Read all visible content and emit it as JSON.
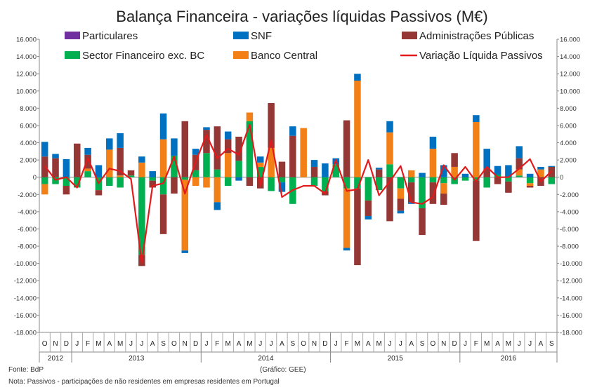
{
  "chart_data": {
    "type": "bar",
    "stacked": true,
    "title": "Balança Financeira - variações líquidas Passivos (M€)",
    "ylim": [
      -18000,
      16000
    ],
    "ytick_step": 2000,
    "ytick_labels": [
      "16.000",
      "14.000",
      "12.000",
      "10.000",
      "8.000",
      "6.000",
      "4.000",
      "2.000",
      "0",
      "-2.000",
      "-4.000",
      "-6.000",
      "-8.000",
      "-10.000",
      "-12.000",
      "-14.000",
      "-16.000",
      "-18.000"
    ],
    "months": [
      "O",
      "N",
      "D",
      "J",
      "F",
      "M",
      "A",
      "M",
      "J",
      "J",
      "A",
      "S",
      "O",
      "N",
      "D",
      "J",
      "F",
      "M",
      "A",
      "M",
      "J",
      "J",
      "A",
      "S",
      "O",
      "N",
      "D",
      "J",
      "F",
      "M",
      "A",
      "M",
      "J",
      "J",
      "A",
      "S",
      "O",
      "N",
      "D",
      "J",
      "F",
      "M",
      "A",
      "M",
      "J",
      "J",
      "A",
      "S"
    ],
    "years": [
      {
        "label": "2012",
        "months": 3
      },
      {
        "label": "2013",
        "months": 12
      },
      {
        "label": "2014",
        "months": 12
      },
      {
        "label": "2015",
        "months": 12
      },
      {
        "label": "2016",
        "months": 9
      }
    ],
    "series": [
      {
        "name": "Particulares",
        "color": "#7030a0",
        "values": [
          0,
          0,
          0,
          0,
          0,
          0,
          0,
          0,
          0,
          0,
          0,
          0,
          0,
          0,
          0,
          0,
          0,
          0,
          0,
          0,
          0,
          0,
          0,
          0,
          0,
          0,
          0,
          0,
          0,
          0,
          0,
          0,
          0,
          0,
          0,
          0,
          0,
          0,
          0,
          0,
          0,
          0,
          0,
          0,
          0,
          0,
          0,
          0
        ]
      },
      {
        "name": "Sector Financeiro exc. BC",
        "color": "#00b050",
        "values": [
          -800,
          -800,
          -1000,
          -1200,
          700,
          -1500,
          -1000,
          -1200,
          200,
          -9000,
          -400,
          -2000,
          2500,
          -300,
          800,
          2800,
          900,
          -1000,
          1900,
          6500,
          1200,
          -1600,
          -600,
          -3100,
          0,
          -1000,
          -1600,
          1500,
          -1300,
          -1300,
          -2700,
          -1500,
          1500,
          -1300,
          -600,
          -3600,
          -600,
          -700,
          -800,
          -400,
          -400,
          -1200,
          300,
          -500,
          200,
          -700,
          0,
          -800
        ]
      },
      {
        "name": "Banco Central",
        "color": "#f28017",
        "values": [
          -1200,
          0,
          0,
          0,
          300,
          0,
          3200,
          200,
          0,
          1700,
          0,
          4400,
          0,
          -8200,
          -1000,
          -1200,
          -2900,
          2800,
          0,
          1000,
          500,
          3400,
          0,
          0,
          5700,
          0,
          0,
          0,
          -6900,
          11200,
          0,
          0,
          3700,
          -1200,
          800,
          0,
          3300,
          -1200,
          1200,
          0,
          6400,
          0,
          0,
          0,
          700,
          -300,
          900,
          0
        ]
      },
      {
        "name": "Administrações Públicas",
        "color": "#953735",
        "values": [
          2400,
          2200,
          -1000,
          3900,
          1600,
          -600,
          0,
          3200,
          600,
          -1300,
          -800,
          -4600,
          -1900,
          6500,
          1800,
          2700,
          5000,
          1600,
          2800,
          -1000,
          -1300,
          5200,
          1800,
          4800,
          0,
          1200,
          -500,
          0,
          6600,
          -8900,
          -1800,
          900,
          -5100,
          -1400,
          -2300,
          -3100,
          -2500,
          -1300,
          1600,
          0,
          -7000,
          1000,
          -800,
          -1300,
          1300,
          -200,
          -1000,
          1200
        ]
      },
      {
        "name": "SNF",
        "color": "#0070c0",
        "values": [
          1700,
          500,
          2100,
          0,
          800,
          1400,
          1300,
          1700,
          0,
          700,
          700,
          3000,
          2000,
          -300,
          700,
          300,
          -900,
          900,
          -400,
          0,
          700,
          0,
          -1100,
          1100,
          0,
          800,
          1600,
          700,
          -300,
          800,
          -400,
          200,
          1300,
          -300,
          -200,
          500,
          1400,
          1400,
          0,
          400,
          800,
          2300,
          1000,
          1400,
          1400,
          400,
          300,
          100
        ]
      }
    ],
    "net_series": {
      "name": "Variação Líquida Passivos",
      "color": "#e31a1c",
      "values": [
        1300,
        -300,
        0,
        -1200,
        2200,
        -700,
        1000,
        700,
        -200,
        -9900,
        -1000,
        -700,
        2400,
        -1900,
        1800,
        4900,
        2200,
        3300,
        2600,
        6100,
        -1000,
        4300,
        -2300,
        -1500,
        -1000,
        -1000,
        -1900,
        2000,
        -1600,
        -1400,
        2000,
        -2100,
        -500,
        1300,
        -2900,
        -3100,
        -2300,
        1400,
        -300,
        1200,
        -500,
        1200,
        0,
        0,
        1000,
        2100,
        -500,
        700
      ]
    },
    "legend": [
      {
        "label": "Particulares",
        "color": "#7030a0",
        "marker": "box"
      },
      {
        "label": "SNF",
        "color": "#0070c0",
        "marker": "box"
      },
      {
        "label": "Administrações Públicas",
        "color": "#953735",
        "marker": "box"
      },
      {
        "label": "Sector Financeiro exc. BC",
        "color": "#00b050",
        "marker": "box"
      },
      {
        "label": "Banco Central",
        "color": "#f28017",
        "marker": "box"
      },
      {
        "label": "Variação Líquida Passivos",
        "color": "#e31a1c",
        "marker": "line"
      }
    ]
  },
  "footer": {
    "source": "Fonte: BdP",
    "credit": "(Gráfico: GEE)",
    "note": "Nota: Passivos - participações de não residentes em empresas residentes em Portugal"
  }
}
